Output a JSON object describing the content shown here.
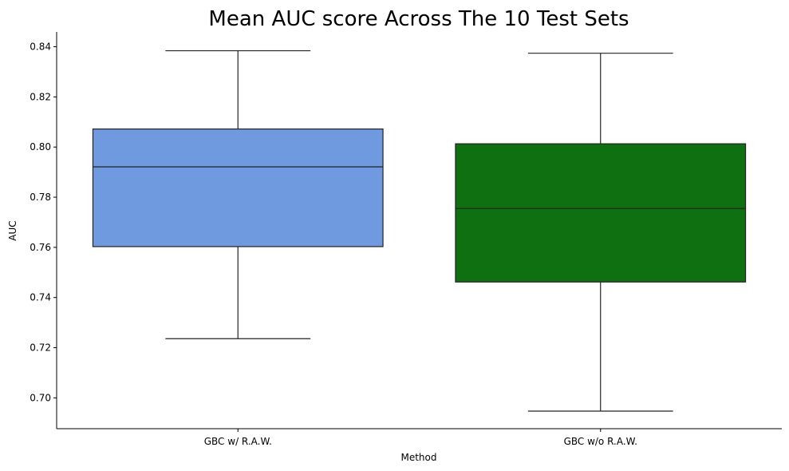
{
  "chart_data": {
    "type": "box",
    "title": "Mean AUC score Across The 10 Test Sets",
    "xlabel": "Method",
    "ylabel": "AUC",
    "ylim": [
      0.6877,
      0.8459
    ],
    "yticks": [
      0.7,
      0.72,
      0.74,
      0.76,
      0.78,
      0.8,
      0.82,
      0.84
    ],
    "ytick_labels": [
      "0.70",
      "0.72",
      "0.74",
      "0.76",
      "0.78",
      "0.80",
      "0.82",
      "0.84"
    ],
    "grid": false,
    "categories": [
      "GBC w/ R.A.W.",
      "GBC w/o R.A.W."
    ],
    "boxes": [
      {
        "category": "GBC w/ R.A.W.",
        "whisker_low": 0.7236,
        "q1": 0.7603,
        "median": 0.7921,
        "q3": 0.8072,
        "whisker_high": 0.8384,
        "color": "#6f9ae0"
      },
      {
        "category": "GBC w/o R.A.W.",
        "whisker_low": 0.6947,
        "q1": 0.7462,
        "median": 0.7755,
        "q3": 0.8013,
        "whisker_high": 0.8374,
        "color": "#0f7012"
      }
    ]
  }
}
